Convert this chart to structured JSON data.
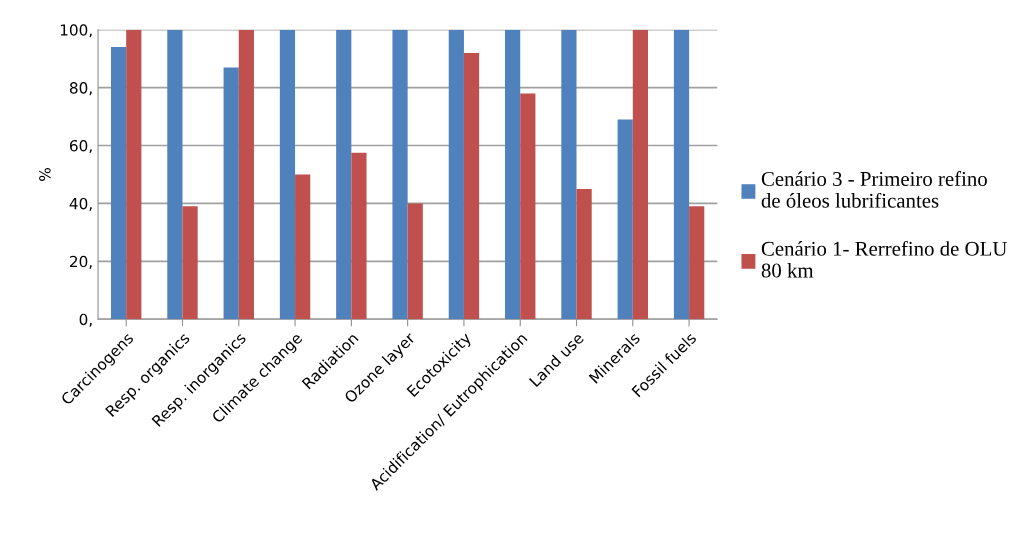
{
  "chart_data": {
    "type": "bar",
    "ylabel": "%",
    "categories": [
      "Carcinogens",
      "Resp. organics",
      "Resp. inorganics",
      "Climate change",
      "Radiation",
      "Ozone layer",
      "Ecotoxicity",
      "Acidification/ Eutrophication",
      "Land use",
      "Minerals",
      "Fossil fuels"
    ],
    "series": [
      {
        "name": "Cenário 3 - Primeiro refino\nde óleos lubrificantes",
        "color": "#4f81bd",
        "values": [
          94,
          100,
          87,
          100,
          100,
          100,
          100,
          100,
          100,
          69,
          100
        ]
      },
      {
        "name": "Cenário 1- Rerrefino de OLU\n80 km",
        "color": "#c0504d",
        "values": [
          100,
          39,
          100,
          50,
          57.5,
          40,
          92,
          78,
          45,
          100,
          39
        ]
      }
    ],
    "ylim": [
      0,
      100
    ],
    "yticks": [
      {
        "value": 0,
        "label": "0,"
      },
      {
        "value": 20,
        "label": "20,"
      },
      {
        "value": 40,
        "label": "40,"
      },
      {
        "value": 60,
        "label": "60,"
      },
      {
        "value": 80,
        "label": "80,"
      },
      {
        "value": 100,
        "label": "100,"
      }
    ],
    "grid": "y",
    "legend": "right"
  }
}
